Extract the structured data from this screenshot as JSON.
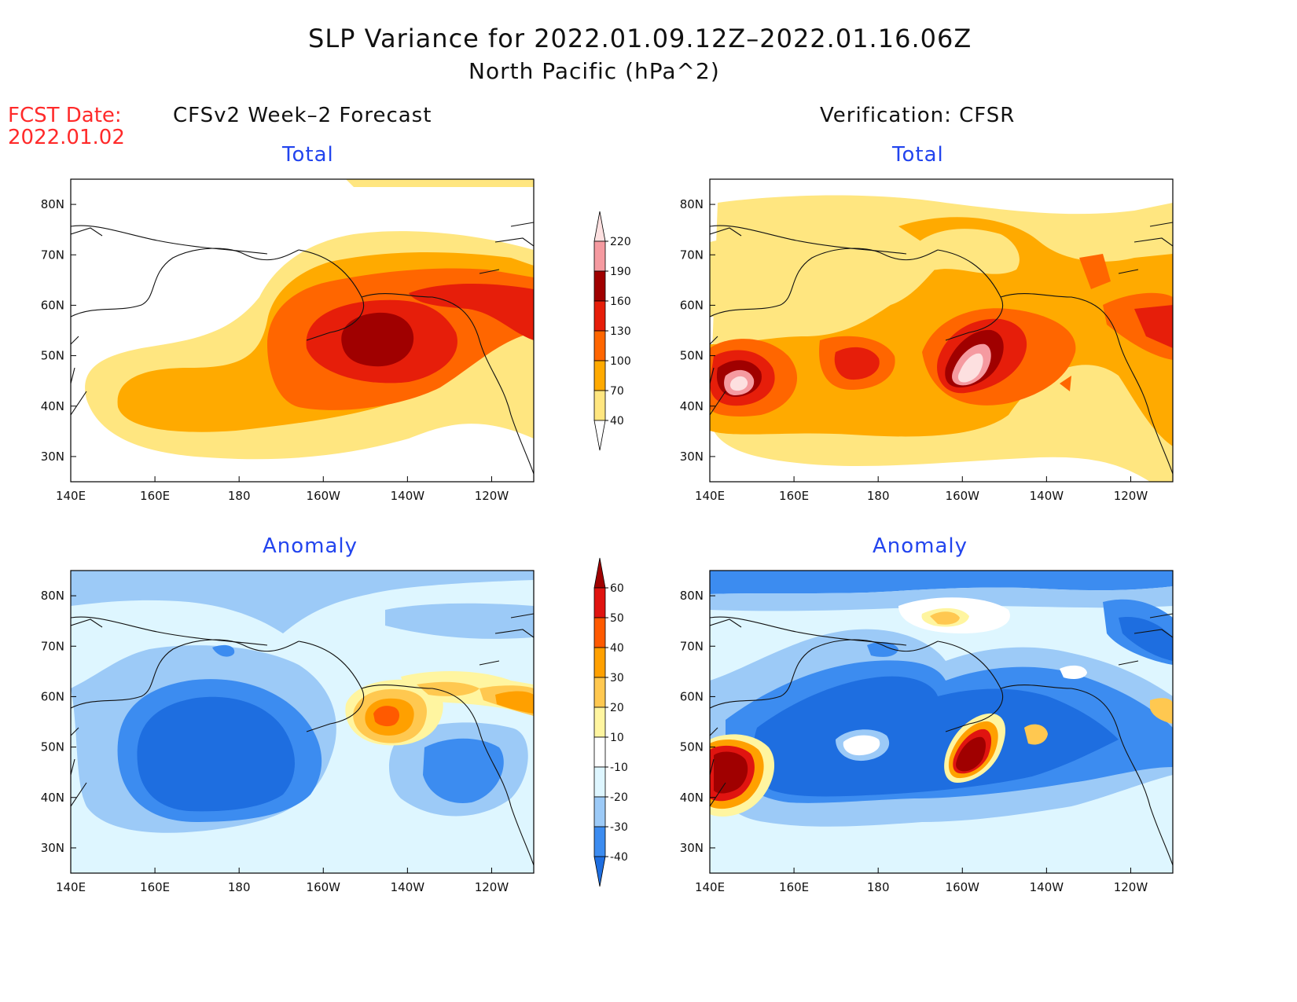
{
  "header": {
    "title": "SLP Variance for 2022.01.09.12Z–2022.01.16.06Z",
    "subtitle": "North Pacific (hPa^2)"
  },
  "fcst_date": {
    "line1": "FCST Date:",
    "line2": "2022.01.02"
  },
  "columns": {
    "left": "CFSv2 Week–2 Forecast",
    "right": "Verification: CFSR"
  },
  "panels": [
    {
      "title": "Total"
    },
    {
      "title": "Total"
    },
    {
      "title": "Anomaly"
    },
    {
      "title": "Anomaly"
    }
  ],
  "axes": {
    "x_ticks": [
      "140E",
      "160E",
      "180",
      "160W",
      "140W",
      "120W"
    ],
    "y_ticks": [
      "80N",
      "70N",
      "60N",
      "50N",
      "40N",
      "30N"
    ],
    "lon_range": [
      140,
      250
    ],
    "lat_range": [
      25,
      85
    ]
  },
  "colorbars": {
    "total": {
      "levels": [
        "40",
        "70",
        "100",
        "130",
        "160",
        "190",
        "220"
      ],
      "colors": [
        "#ffffff",
        "#ffe680",
        "#ffaa00",
        "#ff6600",
        "#e61e0a",
        "#a00000",
        "#f59aa0",
        "#fde0e0"
      ]
    },
    "anomaly": {
      "levels": [
        "-40",
        "-30",
        "-20",
        "-10",
        "10",
        "20",
        "30",
        "40",
        "50",
        "60"
      ],
      "colors": [
        "#1e6ee0",
        "#3c8cf0",
        "#9ccaf7",
        "#def6ff",
        "#ffffff",
        "#fff5a0",
        "#ffc850",
        "#ffa000",
        "#ff5a00",
        "#e01410",
        "#a00000"
      ]
    }
  }
}
